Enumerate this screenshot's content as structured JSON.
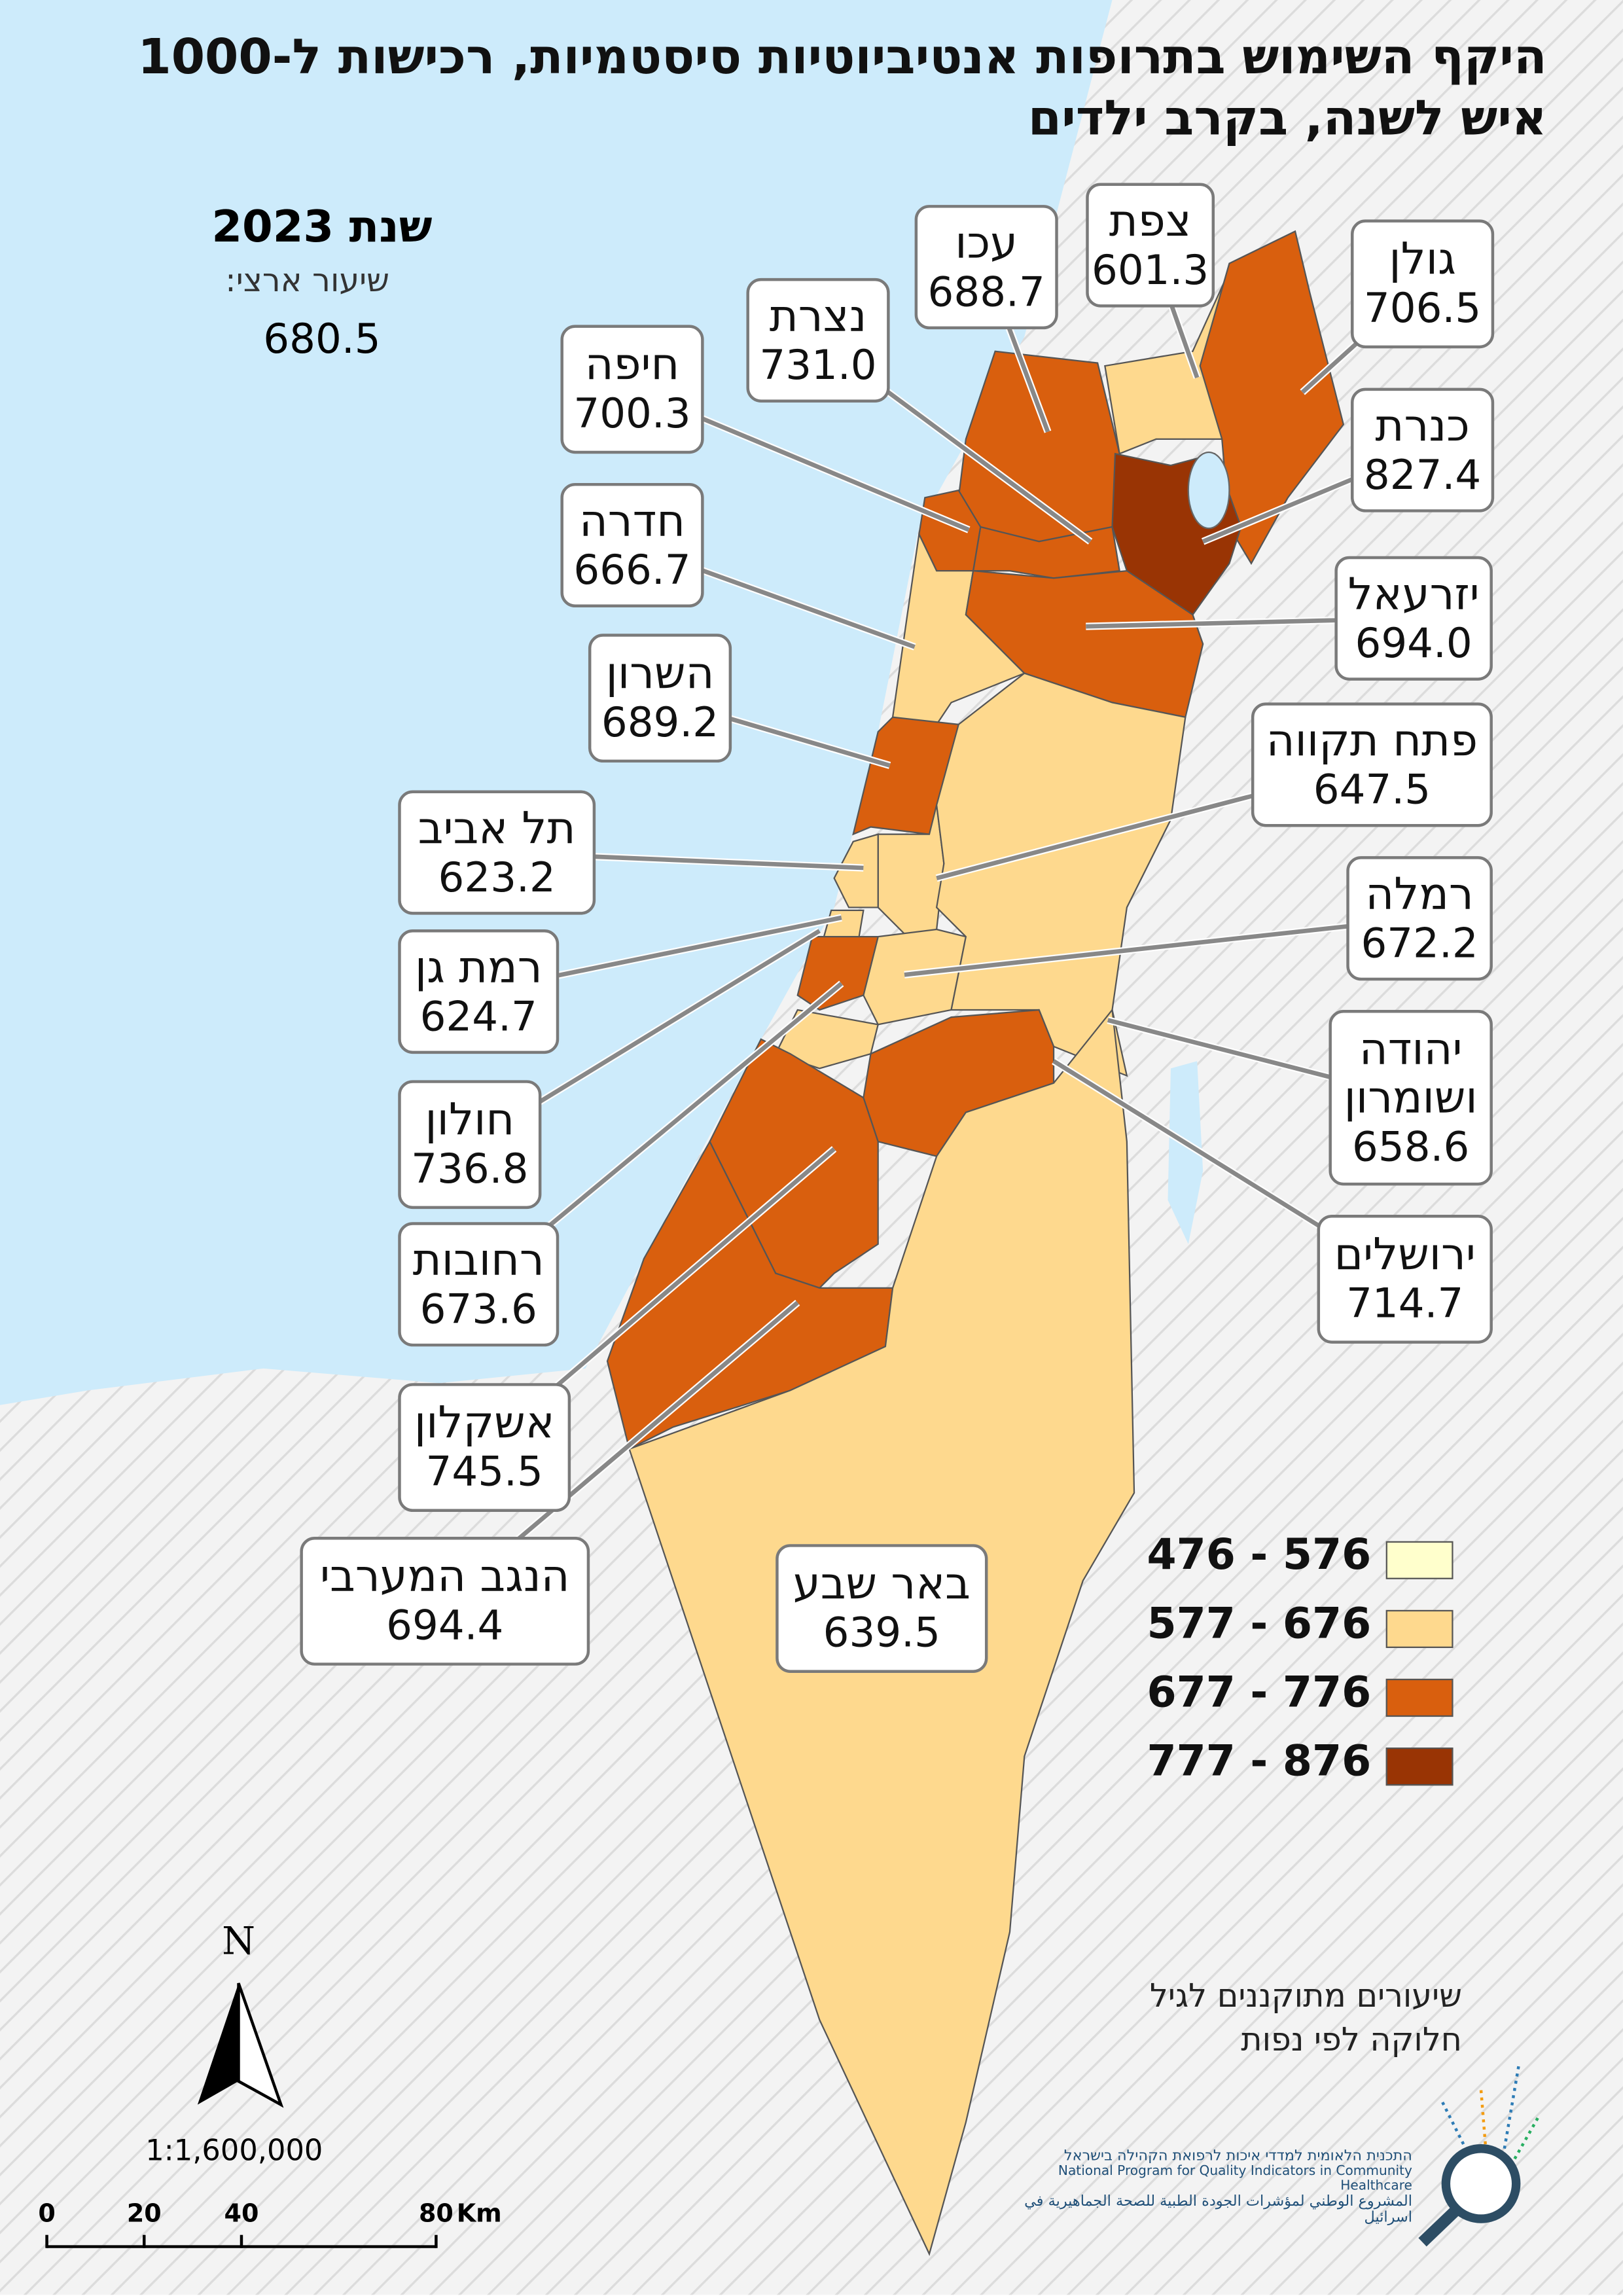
{
  "map": {
    "title": [
      "היקף השימוש בתרופות אנטיביוטיות סיסטמיות, רכישות ל-1000",
      "איש לשנה, בקרב ילדים"
    ],
    "year_label": "שנת 2023",
    "national_label": "שיעור ארצי:",
    "national_value": 680.5,
    "districts": [
      {
        "name": "צפת",
        "value": 601.3
      },
      {
        "name": "עכו",
        "value": 688.7
      },
      {
        "name": "גולן",
        "value": 706.5
      },
      {
        "name": "נצרת",
        "value": 731.0,
        "value_label": "731.0"
      },
      {
        "name": "חיפה",
        "value": 700.3
      },
      {
        "name": "כנרת",
        "value": 827.4
      },
      {
        "name": "חדרה",
        "value": 666.7
      },
      {
        "name": "יזרעאל",
        "value": 694.0,
        "value_label": "694.0"
      },
      {
        "name": "השרון",
        "value": 689.2
      },
      {
        "name": "פתח תקווה",
        "value": 647.5
      },
      {
        "name": "תל אביב",
        "value": 623.2
      },
      {
        "name": "רמלה",
        "value": 672.2
      },
      {
        "name": "רמת גן",
        "value": 624.7
      },
      {
        "name": "יהודה ושומרון",
        "value": 658.6
      },
      {
        "name": "חולון",
        "value": 736.8
      },
      {
        "name": "ירושלים",
        "value": 714.7
      },
      {
        "name": "רחובות",
        "value": 673.6
      },
      {
        "name": "אשקלון",
        "value": 745.5
      },
      {
        "name": "הנגב המערבי",
        "value": 694.4
      },
      {
        "name": "באר שבע",
        "value": 639.5
      }
    ],
    "legend": [
      {
        "label": "476 - 576",
        "min": 476,
        "max": 576,
        "color": "#ffffcc"
      },
      {
        "label": "577 - 676",
        "min": 577,
        "max": 676,
        "color": "#fed98e"
      },
      {
        "label": "677 - 776",
        "min": 677,
        "max": 776,
        "color": "#d95f0e"
      },
      {
        "label": "777 - 876",
        "min": 777,
        "max": 876,
        "color": "#993404"
      }
    ],
    "note": [
      "שיעורים מתוקננים לגיל",
      "חלוקה לפי נפות"
    ],
    "north": "N",
    "scale_ratio": "1:1,600,000",
    "scale_ticks": [
      0,
      20,
      40,
      80
    ],
    "scale_unit": "Km",
    "credits": [
      "התכנית הלאומית למדדי איכות לרפואת הקהילה בישראל",
      "National Program for Quality Indicators in Community Healthcare",
      "المشروع الوطني لمؤشرات الجودة الطبية للصحة الجماهيرية في اسرائيل"
    ]
  }
}
